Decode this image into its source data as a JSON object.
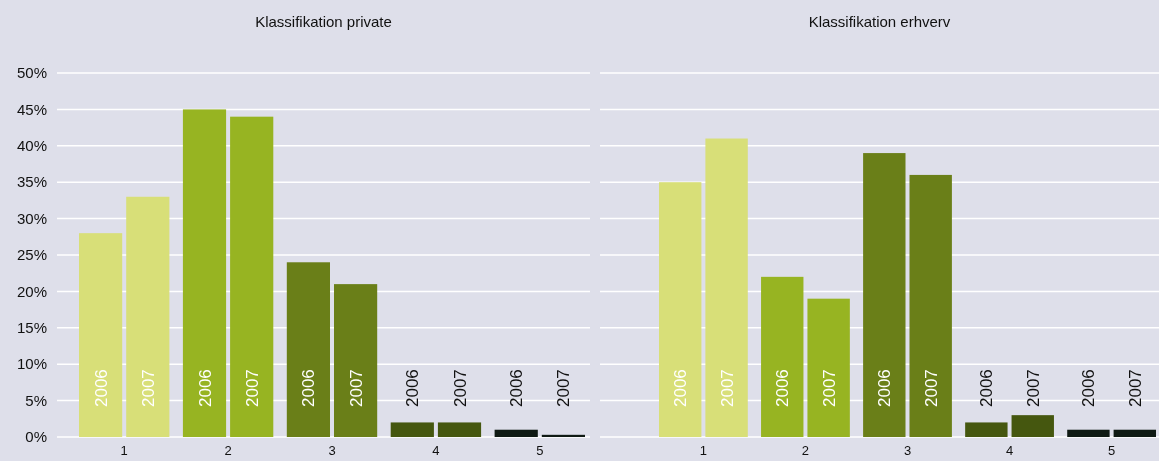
{
  "chart_data": [
    {
      "type": "bar",
      "title": "Klassifikation private",
      "categories": [
        "1",
        "2",
        "3",
        "4",
        "5"
      ],
      "ylim": [
        0,
        50
      ],
      "yticks": [
        {
          "value": 0,
          "label": "0%"
        },
        {
          "value": 5,
          "label": "5%"
        },
        {
          "value": 10,
          "label": "10%"
        },
        {
          "value": 15,
          "label": "15%"
        },
        {
          "value": 20,
          "label": "20%"
        },
        {
          "value": 25,
          "label": "25%"
        },
        {
          "value": 30,
          "label": "30%"
        },
        {
          "value": 35,
          "label": "35%"
        },
        {
          "value": 40,
          "label": "40%"
        },
        {
          "value": 45,
          "label": "45%"
        },
        {
          "value": 50,
          "label": "50%"
        }
      ],
      "grid": "y",
      "series": [
        {
          "name": "2006",
          "colors": [
            "#d8df78",
            "#97b422",
            "#6a7f18",
            "#45570f",
            "#0f1a14"
          ],
          "values": [
            28,
            45,
            24,
            2,
            1
          ]
        },
        {
          "name": "2007",
          "colors": [
            "#d8df78",
            "#97b422",
            "#6a7f18",
            "#45570f",
            "#0f1a14"
          ],
          "values": [
            33,
            44,
            21,
            2,
            0.3
          ]
        }
      ]
    },
    {
      "type": "bar",
      "title": "Klassifikation erhverv",
      "categories": [
        "1",
        "2",
        "3",
        "4",
        "5"
      ],
      "ylim": [
        0,
        50
      ],
      "yticks": [
        {
          "value": 0,
          "label": null
        },
        {
          "value": 5,
          "label": null
        },
        {
          "value": 10,
          "label": null
        },
        {
          "value": 15,
          "label": null
        },
        {
          "value": 20,
          "label": null
        },
        {
          "value": 25,
          "label": null
        },
        {
          "value": 30,
          "label": null
        },
        {
          "value": 35,
          "label": null
        },
        {
          "value": 40,
          "label": null
        },
        {
          "value": 45,
          "label": null
        },
        {
          "value": 50,
          "label": null
        }
      ],
      "grid": "y",
      "tick_labels": "x",
      "series": [
        {
          "name": "2006",
          "colors": [
            "#d8df78",
            "#97b422",
            "#6a7f18",
            "#45570f",
            "#0f1a14"
          ],
          "values": [
            35,
            22,
            39,
            2,
            1
          ]
        },
        {
          "name": "2007",
          "colors": [
            "#d8df78",
            "#97b422",
            "#6a7f18",
            "#45570f",
            "#0f1a14"
          ],
          "values": [
            41,
            19,
            36,
            3,
            1
          ]
        }
      ]
    }
  ]
}
